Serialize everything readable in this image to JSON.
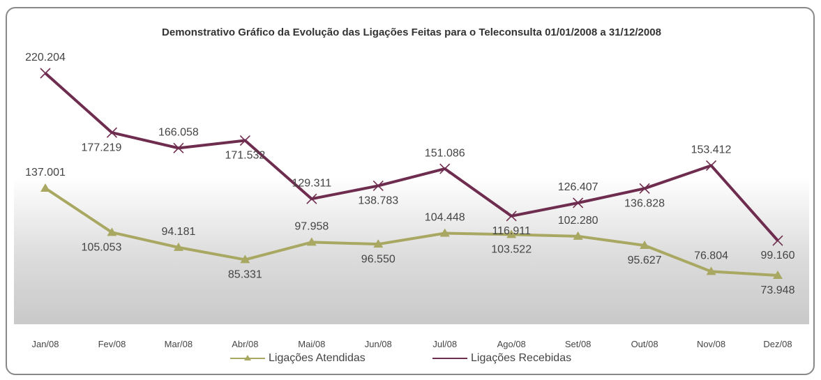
{
  "chart_data": {
    "type": "line",
    "title": "Demonstrativo Gráfico da Evolução das Ligações Feitas para o Teleconsulta 01/01/2008 a 31/12/2008",
    "categories": [
      "Jan/08",
      "Fev/08",
      "Mar/08",
      "Abr/08",
      "Mai/08",
      "Jun/08",
      "Jul/08",
      "Ago/08",
      "Set/08",
      "Out/08",
      "Nov/08",
      "Dez/08"
    ],
    "series": [
      {
        "name": "Ligações Atendidas",
        "color": "#a9a862",
        "marker": "triangle",
        "values": [
          137001,
          105053,
          94181,
          85331,
          97958,
          96550,
          104448,
          103522,
          102280,
          95627,
          76804,
          73948
        ],
        "value_labels": [
          "137.001",
          "105.053",
          "94.181",
          "85.331",
          "97.958",
          "96.550",
          "104.448",
          "103.522",
          "102.280",
          "95.627",
          "76.804",
          "73.948"
        ]
      },
      {
        "name": "Ligações Recebidas",
        "color": "#6e2c4e",
        "marker": "x",
        "values": [
          220204,
          177219,
          166058,
          171532,
          129311,
          138783,
          151086,
          116911,
          126407,
          136828,
          153412,
          99160
        ],
        "value_labels": [
          "220.204",
          "177.219",
          "166.058",
          "171.532",
          "129.311",
          "138.783",
          "151.086",
          "116.911",
          "126.407",
          "136.828",
          "153.412",
          "99.160"
        ]
      }
    ],
    "legend": "bottom"
  }
}
